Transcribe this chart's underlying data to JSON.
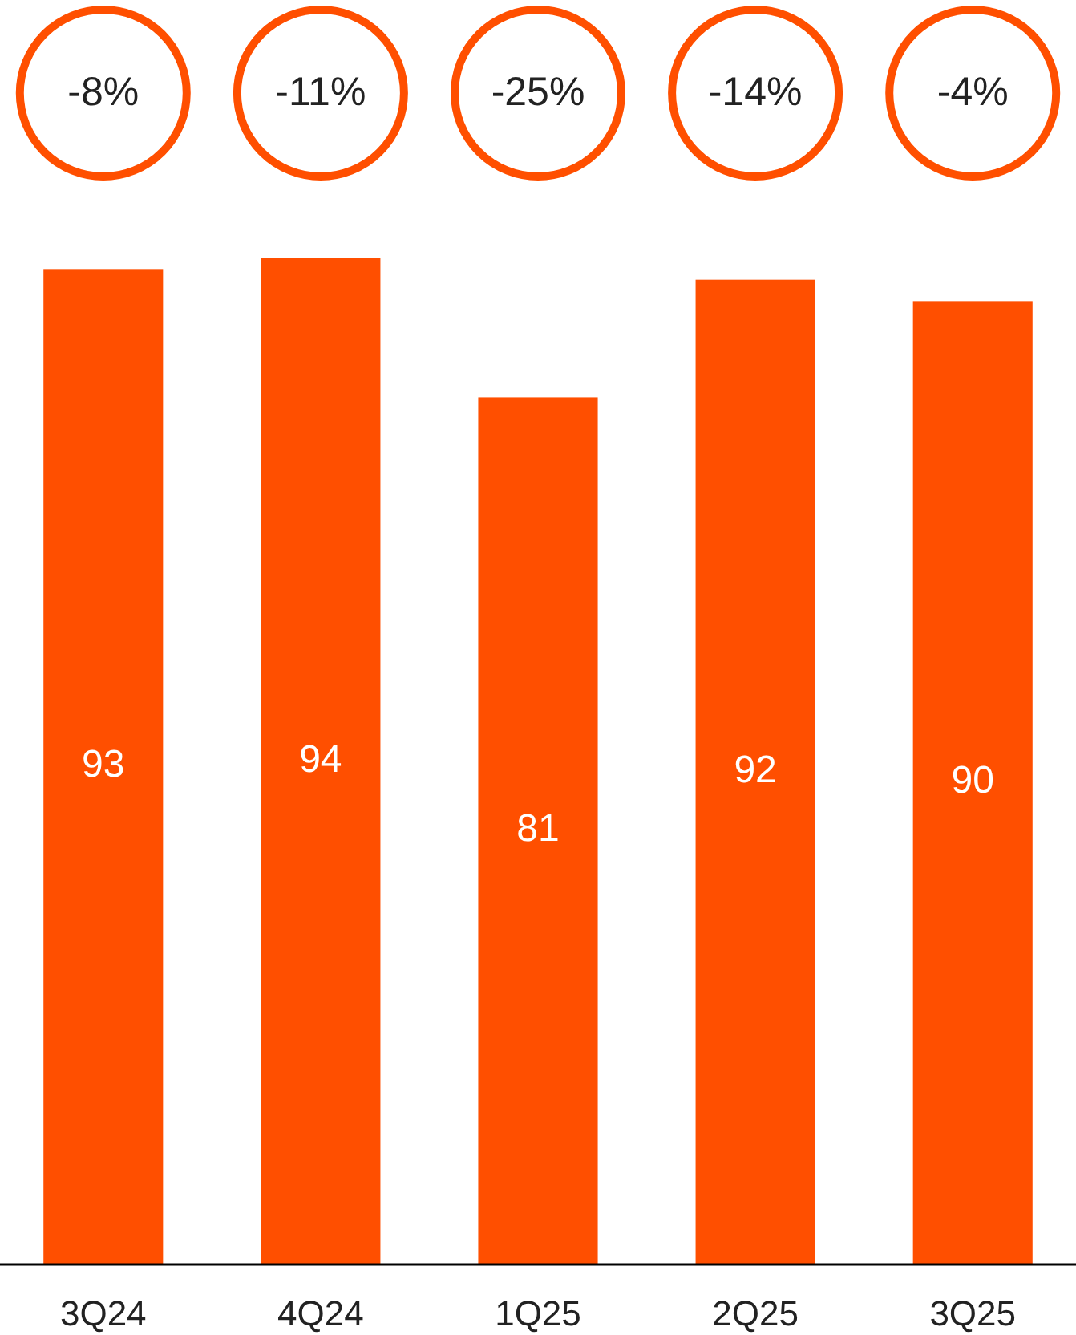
{
  "chart_data": {
    "type": "bar",
    "categories": [
      "3Q24",
      "4Q24",
      "1Q25",
      "2Q25",
      "3Q25"
    ],
    "values": [
      93,
      94,
      81,
      92,
      90
    ],
    "color": "#ff4f00",
    "data_labels": true,
    "annotations": [
      "-8%",
      "-11%",
      "-25%",
      "-14%",
      "-4%"
    ]
  }
}
